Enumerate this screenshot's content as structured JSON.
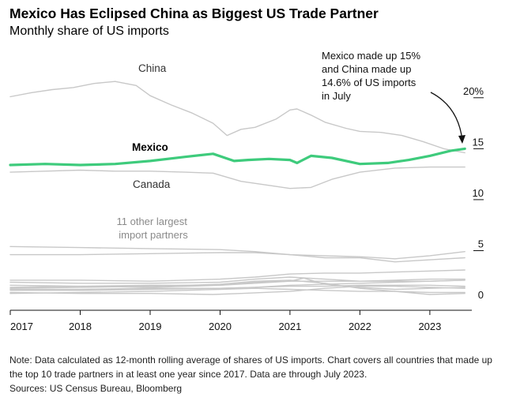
{
  "header": {
    "title": "Mexico Has Eclipsed China as Biggest US Trade Partner",
    "subtitle": "Monthly share of US imports"
  },
  "footer": {
    "note": "Note: Data calculated as 12-month rolling average of shares of US imports. Chart covers all countries that made up the top 10 trade partners in at least one year since 2017. Data are through July 2023.",
    "sources": "Sources: US Census Bureau, Bloomberg"
  },
  "colors": {
    "highlight": "#3ecb7c",
    "muted": "#c8c8c8",
    "label_muted": "#5a5a5a",
    "axis": "#111111"
  },
  "chart_data": {
    "type": "line",
    "title": "Mexico Has Eclipsed China as Biggest US Trade Partner",
    "subtitle": "Monthly share of US imports",
    "ylim": [
      0,
      22
    ],
    "xlim": [
      2017.0,
      2023.6
    ],
    "y_ticks": [
      0,
      5,
      10,
      15,
      20
    ],
    "y_tick_labels": [
      "0",
      "5",
      "10",
      "15",
      "20%"
    ],
    "x_ticks": [
      2017,
      2018,
      2019,
      2020,
      2021,
      2022,
      2023
    ],
    "x_tick_labels": [
      "2017",
      "2018",
      "2019",
      "2020",
      "2021",
      "2022",
      "2023"
    ],
    "grid": false,
    "y_axis_side": "right",
    "labels": {
      "china": "China",
      "mexico": "Mexico",
      "canada": "Canada",
      "others": [
        "11 other largest",
        "import partners"
      ]
    },
    "annotation": {
      "lines": [
        "Mexico made up 15%",
        "and China made up",
        "14.6% of US imports",
        "in July"
      ]
    },
    "series": [
      {
        "key": "china",
        "highlight": false,
        "x": [
          2017.0,
          2017.3,
          2017.6,
          2017.9,
          2018.2,
          2018.5,
          2018.8,
          2019.0,
          2019.3,
          2019.6,
          2019.9,
          2020.1,
          2020.3,
          2020.5,
          2020.8,
          2021.0,
          2021.1,
          2021.3,
          2021.5,
          2021.8,
          2022.0,
          2022.3,
          2022.6,
          2022.9,
          2023.2,
          2023.5
        ],
        "y": [
          20.1,
          20.5,
          20.8,
          21.0,
          21.4,
          21.6,
          21.2,
          20.2,
          19.3,
          18.5,
          17.5,
          16.3,
          16.9,
          17.1,
          17.9,
          18.8,
          18.9,
          18.3,
          17.6,
          17.0,
          16.7,
          16.6,
          16.3,
          15.7,
          15.0,
          14.6
        ]
      },
      {
        "key": "mexico",
        "highlight": true,
        "x": [
          2017.0,
          2017.5,
          2018.0,
          2018.5,
          2019.0,
          2019.5,
          2019.9,
          2020.2,
          2020.4,
          2020.7,
          2021.0,
          2021.1,
          2021.3,
          2021.6,
          2022.0,
          2022.4,
          2022.7,
          2023.0,
          2023.3,
          2023.5
        ],
        "y": [
          13.4,
          13.5,
          13.4,
          13.5,
          13.8,
          14.2,
          14.5,
          13.8,
          13.9,
          14.0,
          13.9,
          13.6,
          14.3,
          14.1,
          13.5,
          13.6,
          13.9,
          14.3,
          14.8,
          15.0
        ]
      },
      {
        "key": "canada",
        "highlight": false,
        "x": [
          2017.0,
          2017.5,
          2018.0,
          2018.5,
          2019.0,
          2019.5,
          2019.9,
          2020.3,
          2020.7,
          2021.0,
          2021.3,
          2021.6,
          2022.0,
          2022.5,
          2023.0,
          2023.5
        ],
        "y": [
          12.7,
          12.8,
          12.9,
          12.8,
          12.8,
          12.7,
          12.6,
          11.8,
          11.4,
          11.1,
          11.2,
          12.0,
          12.7,
          13.1,
          13.2,
          13.2
        ]
      },
      {
        "key": "other1",
        "highlight": false,
        "x": [
          2017.0,
          2018.0,
          2019.0,
          2020.0,
          2020.5,
          2021.0,
          2021.5,
          2022.0,
          2022.5,
          2023.0,
          2023.5
        ],
        "y": [
          5.4,
          5.3,
          5.2,
          5.1,
          4.9,
          4.6,
          4.5,
          4.4,
          4.2,
          4.5,
          4.9
        ]
      },
      {
        "key": "other2",
        "highlight": false,
        "x": [
          2017.0,
          2018.0,
          2019.0,
          2020.0,
          2020.5,
          2021.0,
          2021.5,
          2022.0,
          2022.5,
          2023.0,
          2023.5
        ],
        "y": [
          4.6,
          4.6,
          4.7,
          4.8,
          4.8,
          4.6,
          4.3,
          4.3,
          3.9,
          4.1,
          4.3
        ]
      },
      {
        "key": "other3",
        "highlight": false,
        "x": [
          2017.0,
          2018.0,
          2019.0,
          2020.0,
          2020.5,
          2021.0,
          2021.5,
          2022.0,
          2022.5,
          2023.0,
          2023.5
        ],
        "y": [
          2.1,
          2.1,
          2.0,
          2.2,
          2.4,
          2.7,
          2.8,
          2.8,
          2.9,
          3.0,
          3.1
        ]
      },
      {
        "key": "other4",
        "highlight": false,
        "x": [
          2017.0,
          2018.0,
          2019.0,
          2020.0,
          2020.5,
          2021.0,
          2021.5,
          2022.0,
          2022.5,
          2023.0,
          2023.5
        ],
        "y": [
          1.9,
          1.8,
          1.8,
          1.9,
          2.2,
          2.4,
          2.2,
          2.0,
          2.1,
          2.2,
          2.2
        ]
      },
      {
        "key": "other5",
        "highlight": false,
        "x": [
          2017.0,
          2018.0,
          2019.0,
          2020.0,
          2020.5,
          2021.0,
          2021.2,
          2021.5,
          2022.0,
          2022.5,
          2023.0,
          2023.5
        ],
        "y": [
          1.4,
          1.5,
          1.6,
          1.6,
          1.8,
          2.0,
          2.3,
          1.7,
          1.4,
          1.2,
          1.3,
          1.4
        ]
      },
      {
        "key": "other6",
        "highlight": false,
        "x": [
          2017.0,
          2018.0,
          2019.0,
          2020.0,
          2020.5,
          2021.0,
          2021.5,
          2022.0,
          2022.5,
          2023.0,
          2023.5
        ],
        "y": [
          1.6,
          1.5,
          1.4,
          1.6,
          1.9,
          2.0,
          2.0,
          2.0,
          2.0,
          2.0,
          2.1
        ]
      },
      {
        "key": "other7",
        "highlight": false,
        "x": [
          2017.0,
          2018.0,
          2019.0,
          2020.0,
          2020.5,
          2021.0,
          2021.5,
          2022.0,
          2022.5,
          2023.0,
          2023.5
        ],
        "y": [
          1.2,
          1.2,
          1.3,
          1.3,
          1.4,
          1.6,
          1.7,
          1.8,
          1.9,
          2.0,
          2.1
        ]
      },
      {
        "key": "other8",
        "highlight": false,
        "x": [
          2017.0,
          2018.0,
          2019.0,
          2020.0,
          2020.5,
          2021.0,
          2021.5,
          2022.0,
          2022.5,
          2023.0,
          2023.5
        ],
        "y": [
          1.1,
          1.1,
          1.2,
          1.3,
          1.4,
          1.5,
          1.5,
          1.6,
          1.6,
          1.6,
          1.5
        ]
      },
      {
        "key": "other9",
        "highlight": false,
        "x": [
          2017.0,
          2018.0,
          2019.0,
          2019.9,
          2020.3,
          2021.0,
          2021.5,
          2022.0,
          2022.5,
          2023.0,
          2023.5
        ],
        "y": [
          0.9,
          0.8,
          0.8,
          0.7,
          0.8,
          1.0,
          1.3,
          1.5,
          1.5,
          1.4,
          1.3
        ]
      },
      {
        "key": "other10",
        "highlight": false,
        "x": [
          2017.0,
          2018.0,
          2019.0,
          2020.0,
          2020.5,
          2021.0,
          2021.5,
          2022.0,
          2022.5,
          2023.0,
          2023.5
        ],
        "y": [
          0.8,
          0.9,
          1.0,
          1.2,
          1.3,
          1.2,
          1.1,
          1.0,
          1.0,
          0.9,
          0.9
        ]
      },
      {
        "key": "other11",
        "highlight": false,
        "x": [
          2017.0,
          2018.0,
          2019.0,
          2020.0,
          2020.5,
          2021.0,
          2021.5,
          2022.0,
          2022.5,
          2023.0,
          2023.5
        ],
        "y": [
          1.3,
          1.4,
          1.5,
          1.7,
          2.0,
          2.1,
          1.8,
          1.3,
          1.0,
          0.7,
          0.8
        ]
      }
    ]
  }
}
